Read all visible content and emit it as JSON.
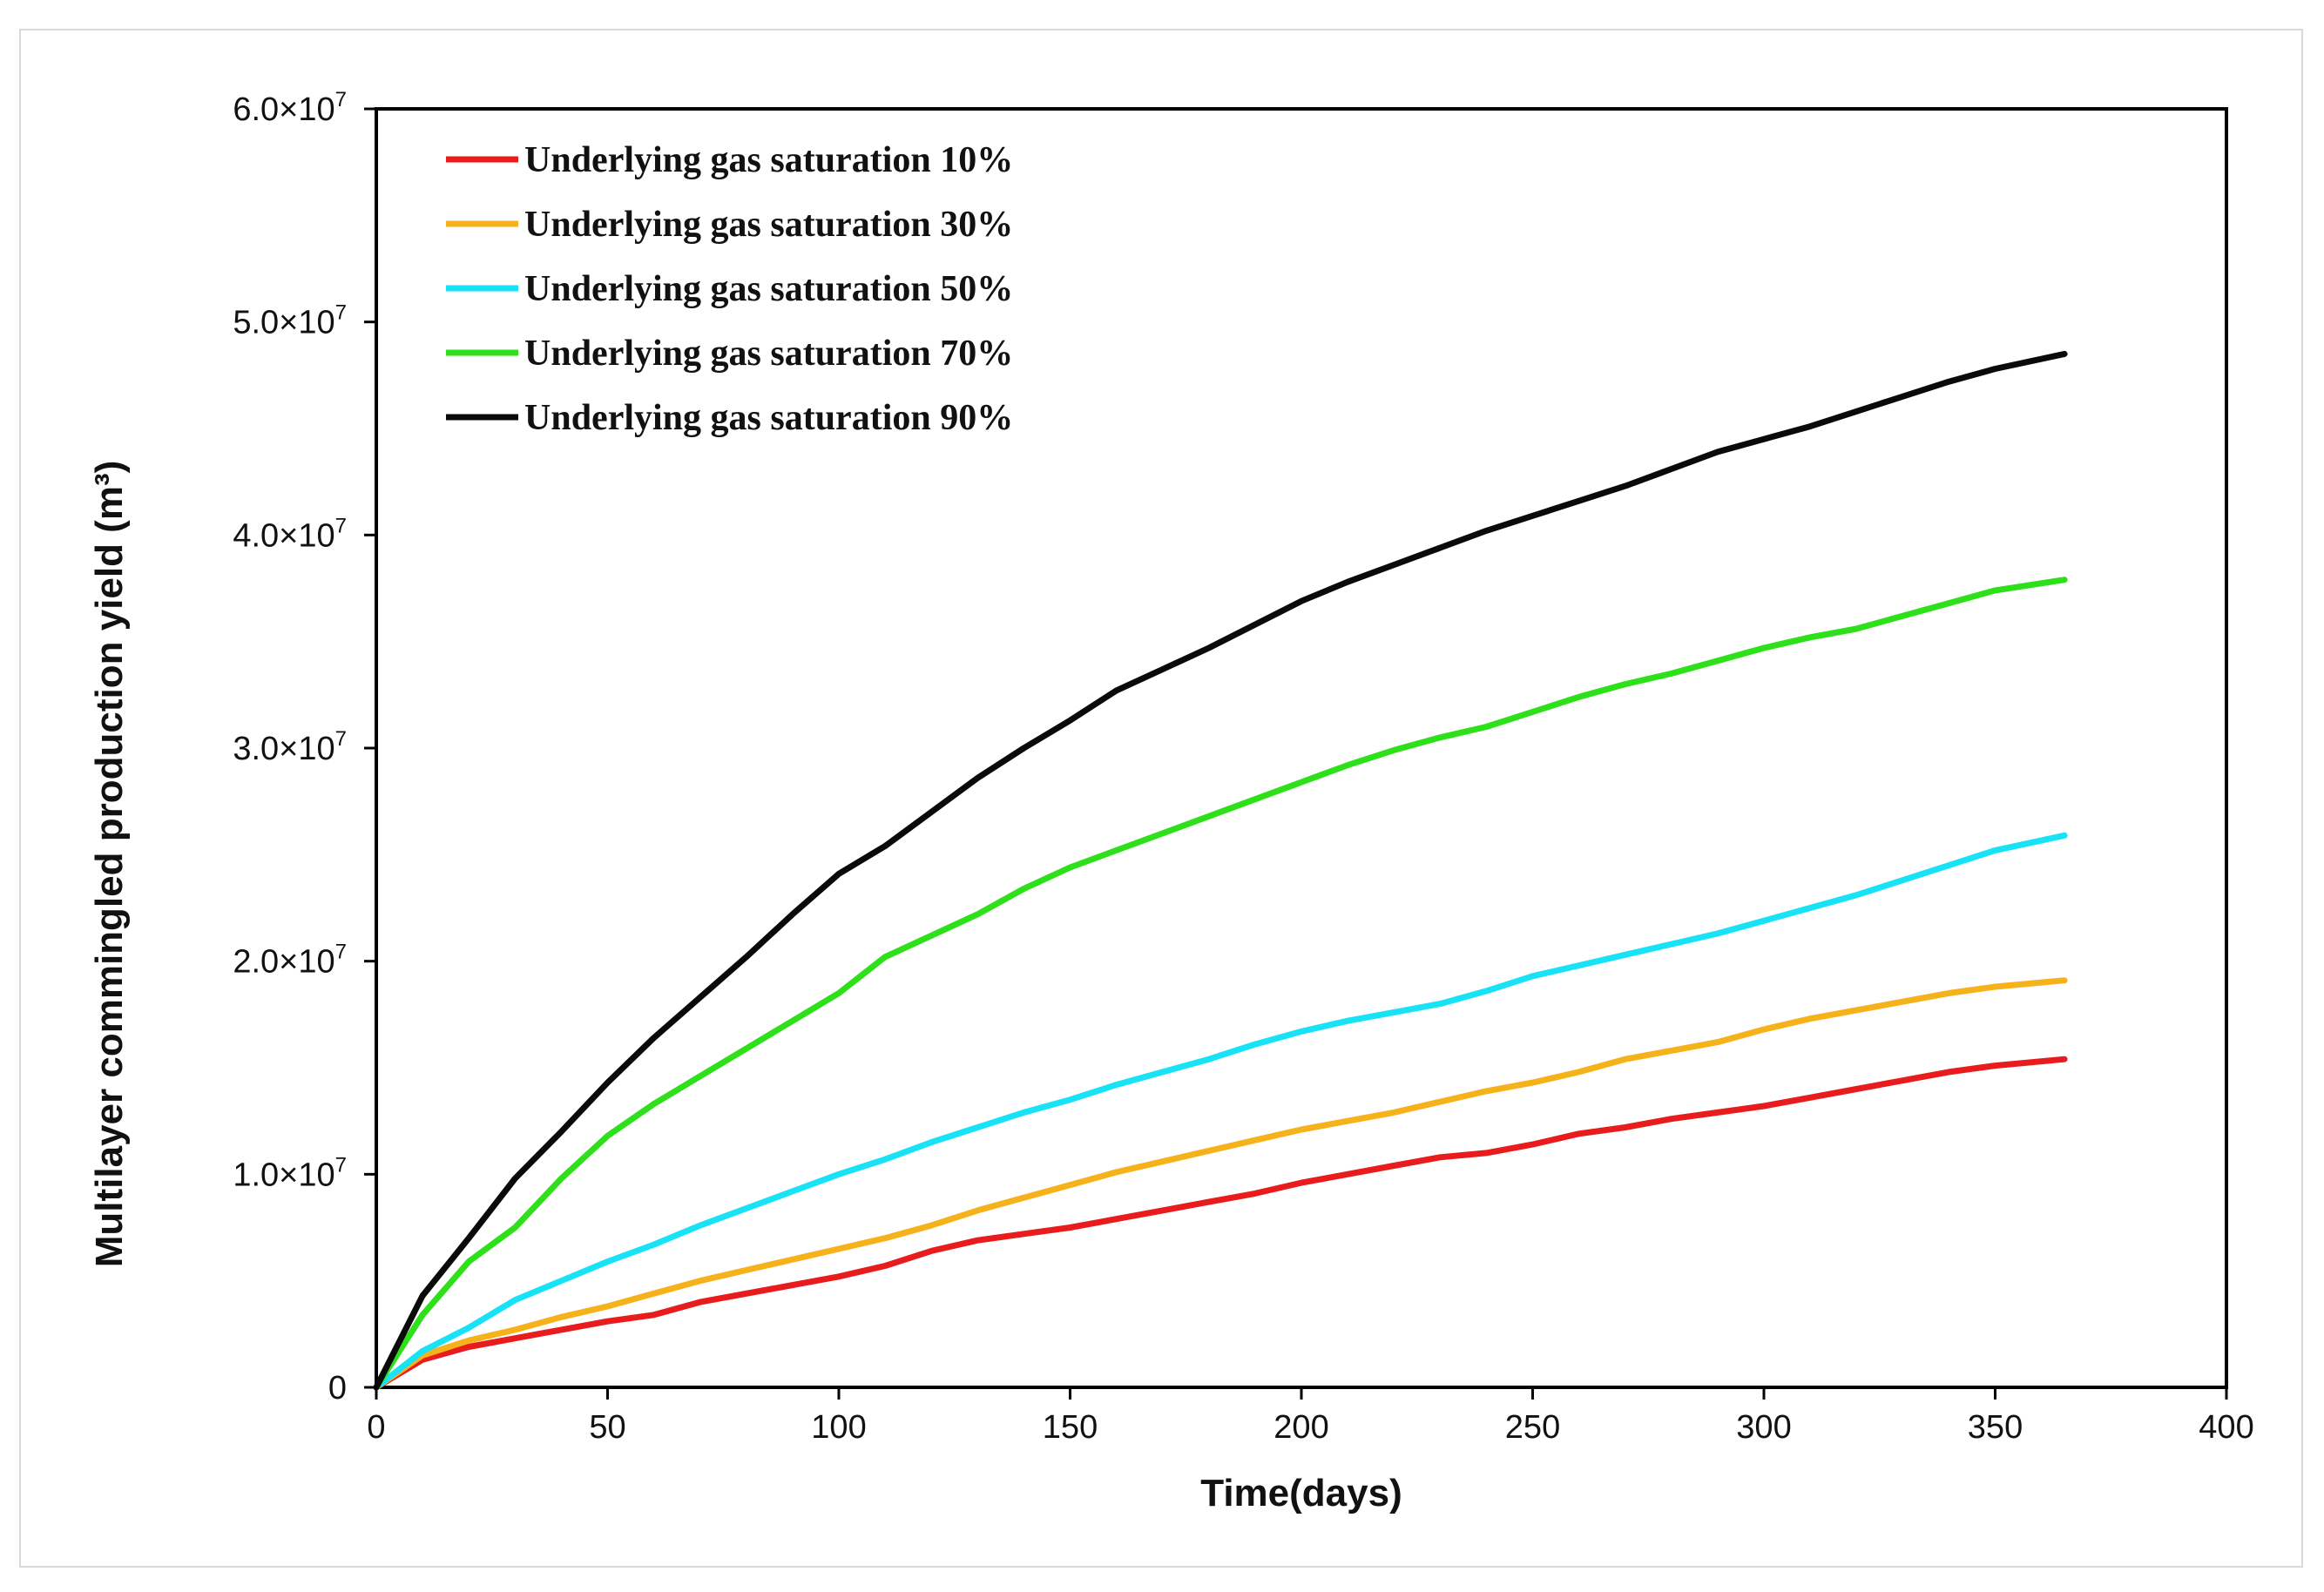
{
  "chart_data": {
    "type": "line",
    "title": "",
    "xlabel": "Time(days)",
    "ylabel": "Multilayer commingled production yield (m³)",
    "xlim": [
      0,
      400
    ],
    "ylim": [
      0,
      60000000
    ],
    "x_ticks": [
      "0",
      "50",
      "100",
      "150",
      "200",
      "250",
      "300",
      "350",
      "400"
    ],
    "x_tick_values": [
      0,
      50,
      100,
      150,
      200,
      250,
      300,
      350,
      400
    ],
    "y_ticks": [
      {
        "value": 0,
        "mantissa": "0",
        "exp": ""
      },
      {
        "value": 10000000,
        "mantissa": "1.0×10",
        "exp": "7"
      },
      {
        "value": 20000000,
        "mantissa": "2.0×10",
        "exp": "7"
      },
      {
        "value": 30000000,
        "mantissa": "3.0×10",
        "exp": "7"
      },
      {
        "value": 40000000,
        "mantissa": "4.0×10",
        "exp": "7"
      },
      {
        "value": 50000000,
        "mantissa": "5.0×10",
        "exp": "7"
      },
      {
        "value": 60000000,
        "mantissa": "6.0×10",
        "exp": "7"
      }
    ],
    "grid": false,
    "legend_position": "top-left",
    "x": [
      0,
      10,
      20,
      30,
      40,
      50,
      60,
      70,
      80,
      90,
      100,
      110,
      120,
      130,
      140,
      150,
      160,
      170,
      180,
      190,
      200,
      210,
      220,
      230,
      240,
      250,
      260,
      270,
      280,
      290,
      300,
      310,
      320,
      330,
      340,
      350,
      365
    ],
    "series": [
      {
        "name": "Underlying gas saturation 10%",
        "color": "#e81c1c",
        "values": [
          0,
          1300000,
          1900000,
          2300000,
          2700000,
          3100000,
          3400000,
          4000000,
          4400000,
          4800000,
          5200000,
          5700000,
          6400000,
          6900000,
          7200000,
          7500000,
          7900000,
          8300000,
          8700000,
          9100000,
          9600000,
          10000000,
          10400000,
          10800000,
          11000000,
          11400000,
          11900000,
          12200000,
          12600000,
          12900000,
          13200000,
          13600000,
          14000000,
          14400000,
          14800000,
          15100000,
          15400000
        ]
      },
      {
        "name": "Underlying gas saturation 30%",
        "color": "#f5b21a",
        "values": [
          0,
          1500000,
          2200000,
          2700000,
          3300000,
          3800000,
          4400000,
          5000000,
          5500000,
          6000000,
          6500000,
          7000000,
          7600000,
          8300000,
          8900000,
          9500000,
          10100000,
          10600000,
          11100000,
          11600000,
          12100000,
          12500000,
          12900000,
          13400000,
          13900000,
          14300000,
          14800000,
          15400000,
          15800000,
          16200000,
          16800000,
          17300000,
          17700000,
          18100000,
          18500000,
          18800000,
          19100000
        ]
      },
      {
        "name": "Underlying gas saturation 50%",
        "color": "#18e2f5",
        "values": [
          0,
          1700000,
          2800000,
          4100000,
          5000000,
          5900000,
          6700000,
          7600000,
          8400000,
          9200000,
          10000000,
          10700000,
          11500000,
          12200000,
          12900000,
          13500000,
          14200000,
          14800000,
          15400000,
          16100000,
          16700000,
          17200000,
          17600000,
          18000000,
          18600000,
          19300000,
          19800000,
          20300000,
          20800000,
          21300000,
          21900000,
          22500000,
          23100000,
          23800000,
          24500000,
          25200000,
          25900000
        ]
      },
      {
        "name": "Underlying gas saturation 70%",
        "color": "#2ee01a",
        "values": [
          0,
          3400000,
          5900000,
          7500000,
          9800000,
          11800000,
          13300000,
          14600000,
          15900000,
          17200000,
          18500000,
          20200000,
          21200000,
          22200000,
          23400000,
          24400000,
          25200000,
          26000000,
          26800000,
          27600000,
          28400000,
          29200000,
          29900000,
          30500000,
          31000000,
          31700000,
          32400000,
          33000000,
          33500000,
          34100000,
          34700000,
          35200000,
          35600000,
          36200000,
          36800000,
          37400000,
          37900000
        ]
      },
      {
        "name": "Underlying gas saturation 90%",
        "color": "#0a0a0a",
        "values": [
          0,
          4300000,
          7000000,
          9800000,
          12000000,
          14300000,
          16400000,
          18300000,
          20200000,
          22200000,
          24100000,
          25400000,
          27000000,
          28600000,
          30000000,
          31300000,
          32700000,
          33700000,
          34700000,
          35800000,
          36900000,
          37800000,
          38600000,
          39400000,
          40200000,
          40900000,
          41600000,
          42300000,
          43100000,
          43900000,
          44500000,
          45100000,
          45800000,
          46500000,
          47200000,
          47800000,
          48500000
        ]
      }
    ]
  }
}
